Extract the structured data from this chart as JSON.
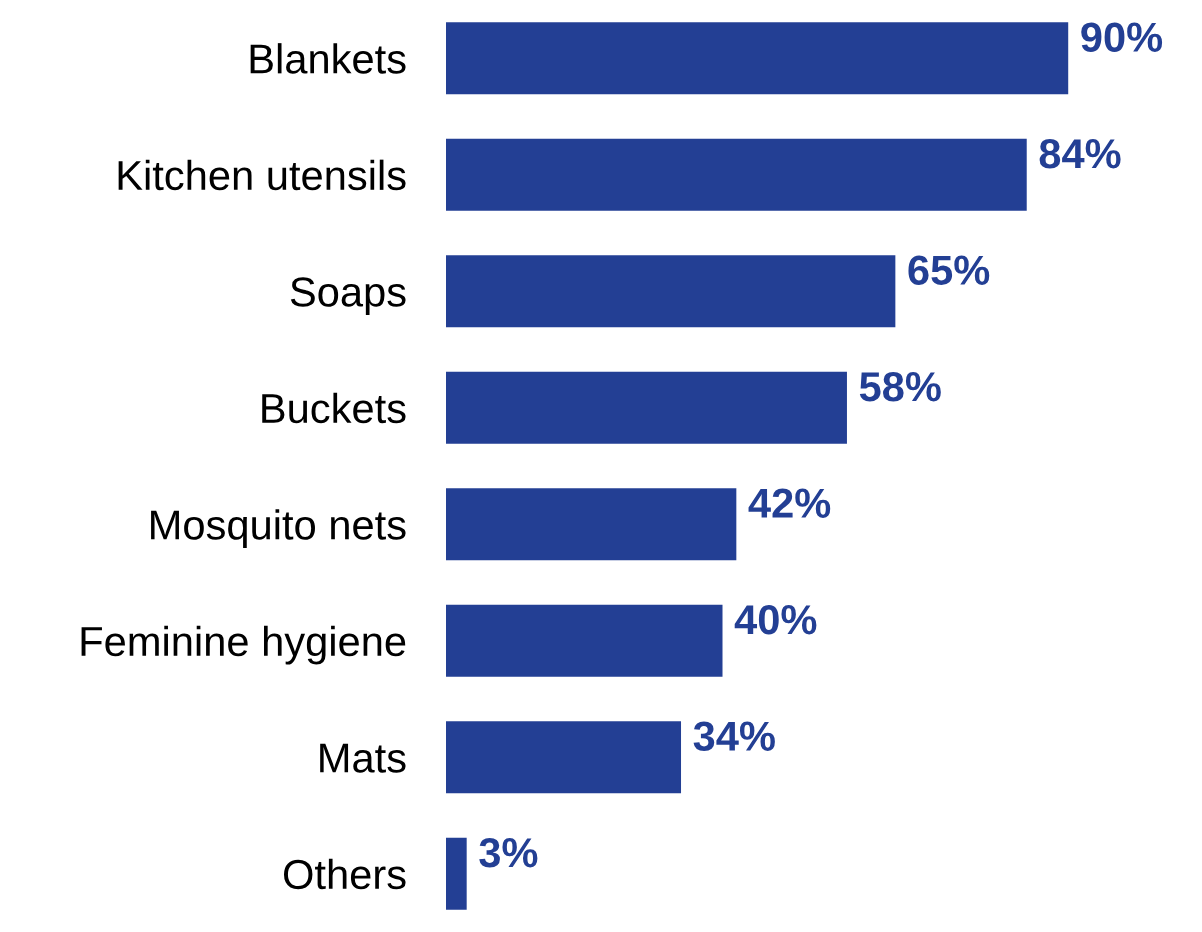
{
  "chart_data": {
    "type": "bar",
    "orientation": "horizontal",
    "categories": [
      "Blankets",
      "Kitchen utensils",
      "Soaps",
      "Buckets",
      "Mosquito nets",
      "Feminine hygiene",
      "Mats",
      "Others"
    ],
    "values": [
      90,
      84,
      65,
      58,
      42,
      40,
      34,
      3
    ],
    "value_labels": [
      "90%",
      "84%",
      "65%",
      "58%",
      "42%",
      "40%",
      "34%",
      "3%"
    ],
    "color": "#233f94",
    "grid": false,
    "legend": false
  }
}
